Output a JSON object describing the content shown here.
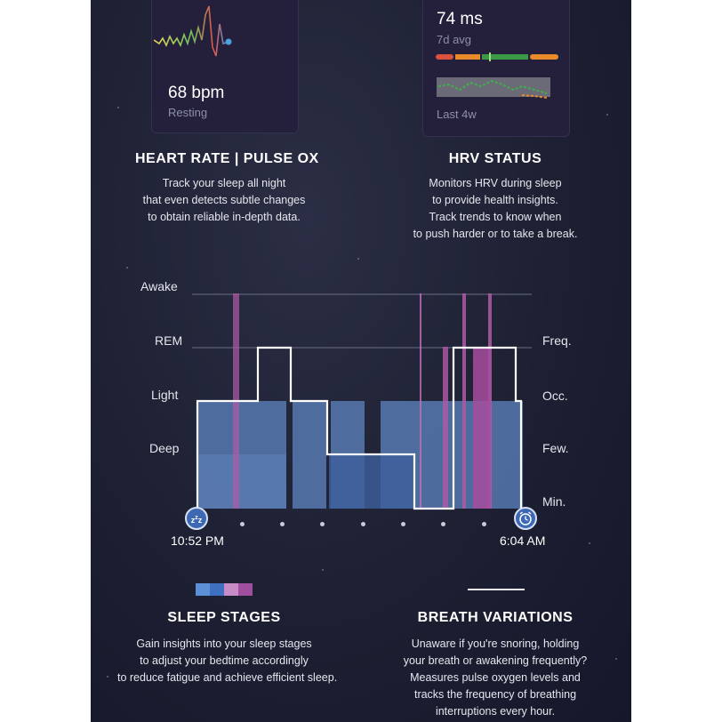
{
  "heart_rate_card": {
    "value": "68 bpm",
    "caption": "Resting"
  },
  "hrv_card": {
    "value": "74 ms",
    "subtitle": "7d avg",
    "footer": "Last 4w"
  },
  "heart_rate": {
    "title": "HEART RATE | PULSE OX",
    "lines": [
      "Track your sleep all night",
      "that even detects subtle changes",
      "to obtain reliable in-depth data."
    ]
  },
  "hrv": {
    "title": "HRV STATUS",
    "lines": [
      "Monitors HRV during sleep",
      "to provide health insights.",
      "Track trends to know when",
      "to push harder or to take a break."
    ]
  },
  "sleep_chart": {
    "stage_labels": [
      "Awake",
      "REM",
      "Light",
      "Deep"
    ],
    "freq_labels": [
      "Freq.",
      "Occ.",
      "Few.",
      "Min."
    ],
    "start_time": "10:52 PM",
    "end_time": "6:04 AM",
    "start_icon": "sleep-zzz-icon",
    "end_icon": "alarm-clock-icon"
  },
  "legend_colors": [
    "#5b8fd6",
    "#3e6fc0",
    "#c98ac8",
    "#a04f9f"
  ],
  "sleep_stages": {
    "title": "SLEEP STAGES",
    "lines": [
      "Gain insights into your sleep stages",
      "to adjust your bedtime accordingly",
      "to reduce fatigue and achieve efficient sleep."
    ]
  },
  "breath": {
    "title": "BREATH VARIATIONS",
    "lines": [
      "Unaware if you're snoring, holding",
      "your breath or awakening frequently?",
      "Measures pulse oxygen levels and",
      "tracks the frequency of breathing",
      "interruptions every hour."
    ]
  }
}
